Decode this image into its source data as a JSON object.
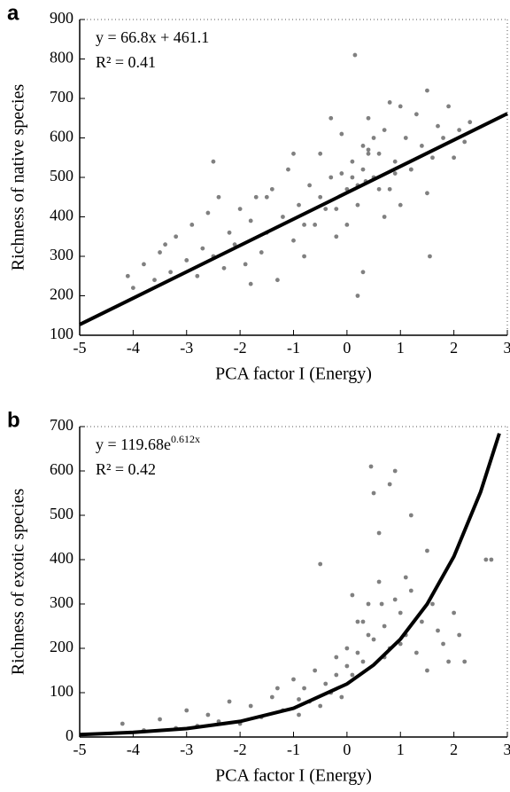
{
  "chart_data": [
    {
      "type": "scatter",
      "panel_label": "a",
      "xlabel": "PCA factor I (Energy)",
      "ylabel": "Richness of native species",
      "annotations": [
        "y = 66.8x + 461.1",
        "R² = 0.41"
      ],
      "xlim": [
        -5,
        3
      ],
      "xticks": [
        -5,
        -4,
        -3,
        -2,
        -1,
        0,
        1,
        2,
        3
      ],
      "ylim": [
        100,
        900
      ],
      "yticks": [
        100,
        200,
        300,
        400,
        500,
        600,
        700,
        800,
        900
      ],
      "series": [
        {
          "color": "#808080",
          "x": [
            -4.1,
            -4.0,
            -3.8,
            -3.6,
            -3.5,
            -3.3,
            -3.2,
            -3.0,
            -2.9,
            -2.8,
            -2.7,
            -2.6,
            -2.5,
            -2.4,
            -2.3,
            -2.2,
            -2.1,
            -2.0,
            -1.9,
            -1.8,
            -1.7,
            -1.6,
            -1.5,
            -1.4,
            -1.3,
            -1.2,
            -1.1,
            -1.0,
            -0.9,
            -0.8,
            -0.7,
            -0.6,
            -0.5,
            -0.4,
            -0.3,
            -0.2,
            -0.1,
            0.0,
            0.1,
            0.2,
            0.3,
            0.4,
            0.5,
            0.6,
            0.7,
            0.8,
            0.9,
            1.0,
            1.1,
            1.2,
            1.3,
            1.4,
            1.5,
            1.6,
            1.7,
            1.8,
            1.9,
            2.0,
            2.1,
            2.2,
            2.3,
            -0.5,
            0.1,
            0.3,
            0.2,
            0.4,
            0.6,
            -0.2,
            0.0,
            0.5,
            0.8,
            1.0,
            -1.0,
            -1.5,
            -0.8,
            0.3,
            0.7,
            1.2,
            1.5,
            0.9,
            -0.3,
            0.2,
            0.4,
            -2.5,
            -1.8,
            -3.4,
            1.55,
            0.15,
            0.35,
            -0.1
          ],
          "values": [
            250,
            220,
            280,
            240,
            310,
            260,
            350,
            290,
            380,
            250,
            320,
            410,
            300,
            450,
            270,
            360,
            330,
            420,
            280,
            390,
            450,
            310,
            360,
            470,
            240,
            400,
            520,
            340,
            430,
            300,
            480,
            380,
            560,
            420,
            500,
            350,
            610,
            470,
            540,
            430,
            580,
            650,
            500,
            560,
            620,
            470,
            540,
            680,
            600,
            520,
            660,
            580,
            720,
            550,
            630,
            600,
            680,
            550,
            620,
            590,
            640,
            450,
            500,
            520,
            480,
            560,
            470,
            420,
            380,
            600,
            690,
            430,
            560,
            450,
            380,
            260,
            400,
            520,
            460,
            510,
            650,
            200,
            570,
            540,
            230,
            330,
            300,
            810,
            490,
            510
          ]
        }
      ],
      "fit": {
        "x": [
          -5,
          3
        ],
        "values": [
          127.1,
          661.5
        ]
      }
    },
    {
      "type": "scatter",
      "panel_label": "b",
      "xlabel": "PCA factor I (Energy)",
      "ylabel": "Richness of exotic species",
      "annotations": [
        {
          "text": "y = 119.68e",
          "superscript": "0.612x"
        },
        "R² = 0.42"
      ],
      "xlim": [
        -5,
        3
      ],
      "xticks": [
        -5,
        -4,
        -3,
        -2,
        -1,
        0,
        1,
        2,
        3
      ],
      "ylim": [
        0,
        700
      ],
      "yticks": [
        0,
        100,
        200,
        300,
        400,
        500,
        600,
        700
      ],
      "series": [
        {
          "color": "#808080",
          "x": [
            -4.2,
            -3.8,
            -3.5,
            -3.2,
            -3.0,
            -2.8,
            -2.6,
            -2.4,
            -2.2,
            -2.0,
            -1.8,
            -1.6,
            -1.4,
            -1.2,
            -1.0,
            -0.9,
            -0.8,
            -0.7,
            -0.6,
            -0.5,
            -0.4,
            -0.3,
            -0.2,
            -0.1,
            0.0,
            0.1,
            0.2,
            0.3,
            0.4,
            0.5,
            0.6,
            0.7,
            0.8,
            0.9,
            1.0,
            1.1,
            1.2,
            1.3,
            1.4,
            1.5,
            1.6,
            1.7,
            1.8,
            1.9,
            2.0,
            2.1,
            2.2,
            2.6,
            2.7,
            0.1,
            0.3,
            0.5,
            0.2,
            0.4,
            0.7,
            -0.5,
            0.9,
            1.2,
            -1.3,
            0.8,
            1.5,
            0.6,
            0.0,
            -0.2,
            1.1,
            0.45,
            0.65,
            1.0,
            -0.9
          ],
          "values": [
            30,
            15,
            40,
            20,
            60,
            25,
            50,
            35,
            80,
            30,
            70,
            45,
            90,
            60,
            130,
            50,
            110,
            80,
            150,
            70,
            120,
            100,
            180,
            90,
            200,
            140,
            260,
            170,
            300,
            220,
            350,
            250,
            200,
            310,
            280,
            230,
            330,
            190,
            260,
            150,
            300,
            240,
            210,
            170,
            280,
            230,
            170,
            400,
            400,
            320,
            260,
            550,
            190,
            230,
            180,
            390,
            600,
            500,
            110,
            570,
            420,
            460,
            160,
            140,
            360,
            610,
            300,
            210,
            85
          ]
        }
      ],
      "fit": {
        "x": [
          -5,
          -4,
          -3,
          -2,
          -1,
          0,
          0.5,
          1,
          1.5,
          2,
          2.5,
          2.85
        ],
        "values": [
          5.6,
          10.4,
          19.1,
          35.2,
          64.9,
          119.7,
          162.5,
          220.7,
          299.7,
          407.0,
          552.7,
          684.6
        ]
      }
    }
  ]
}
